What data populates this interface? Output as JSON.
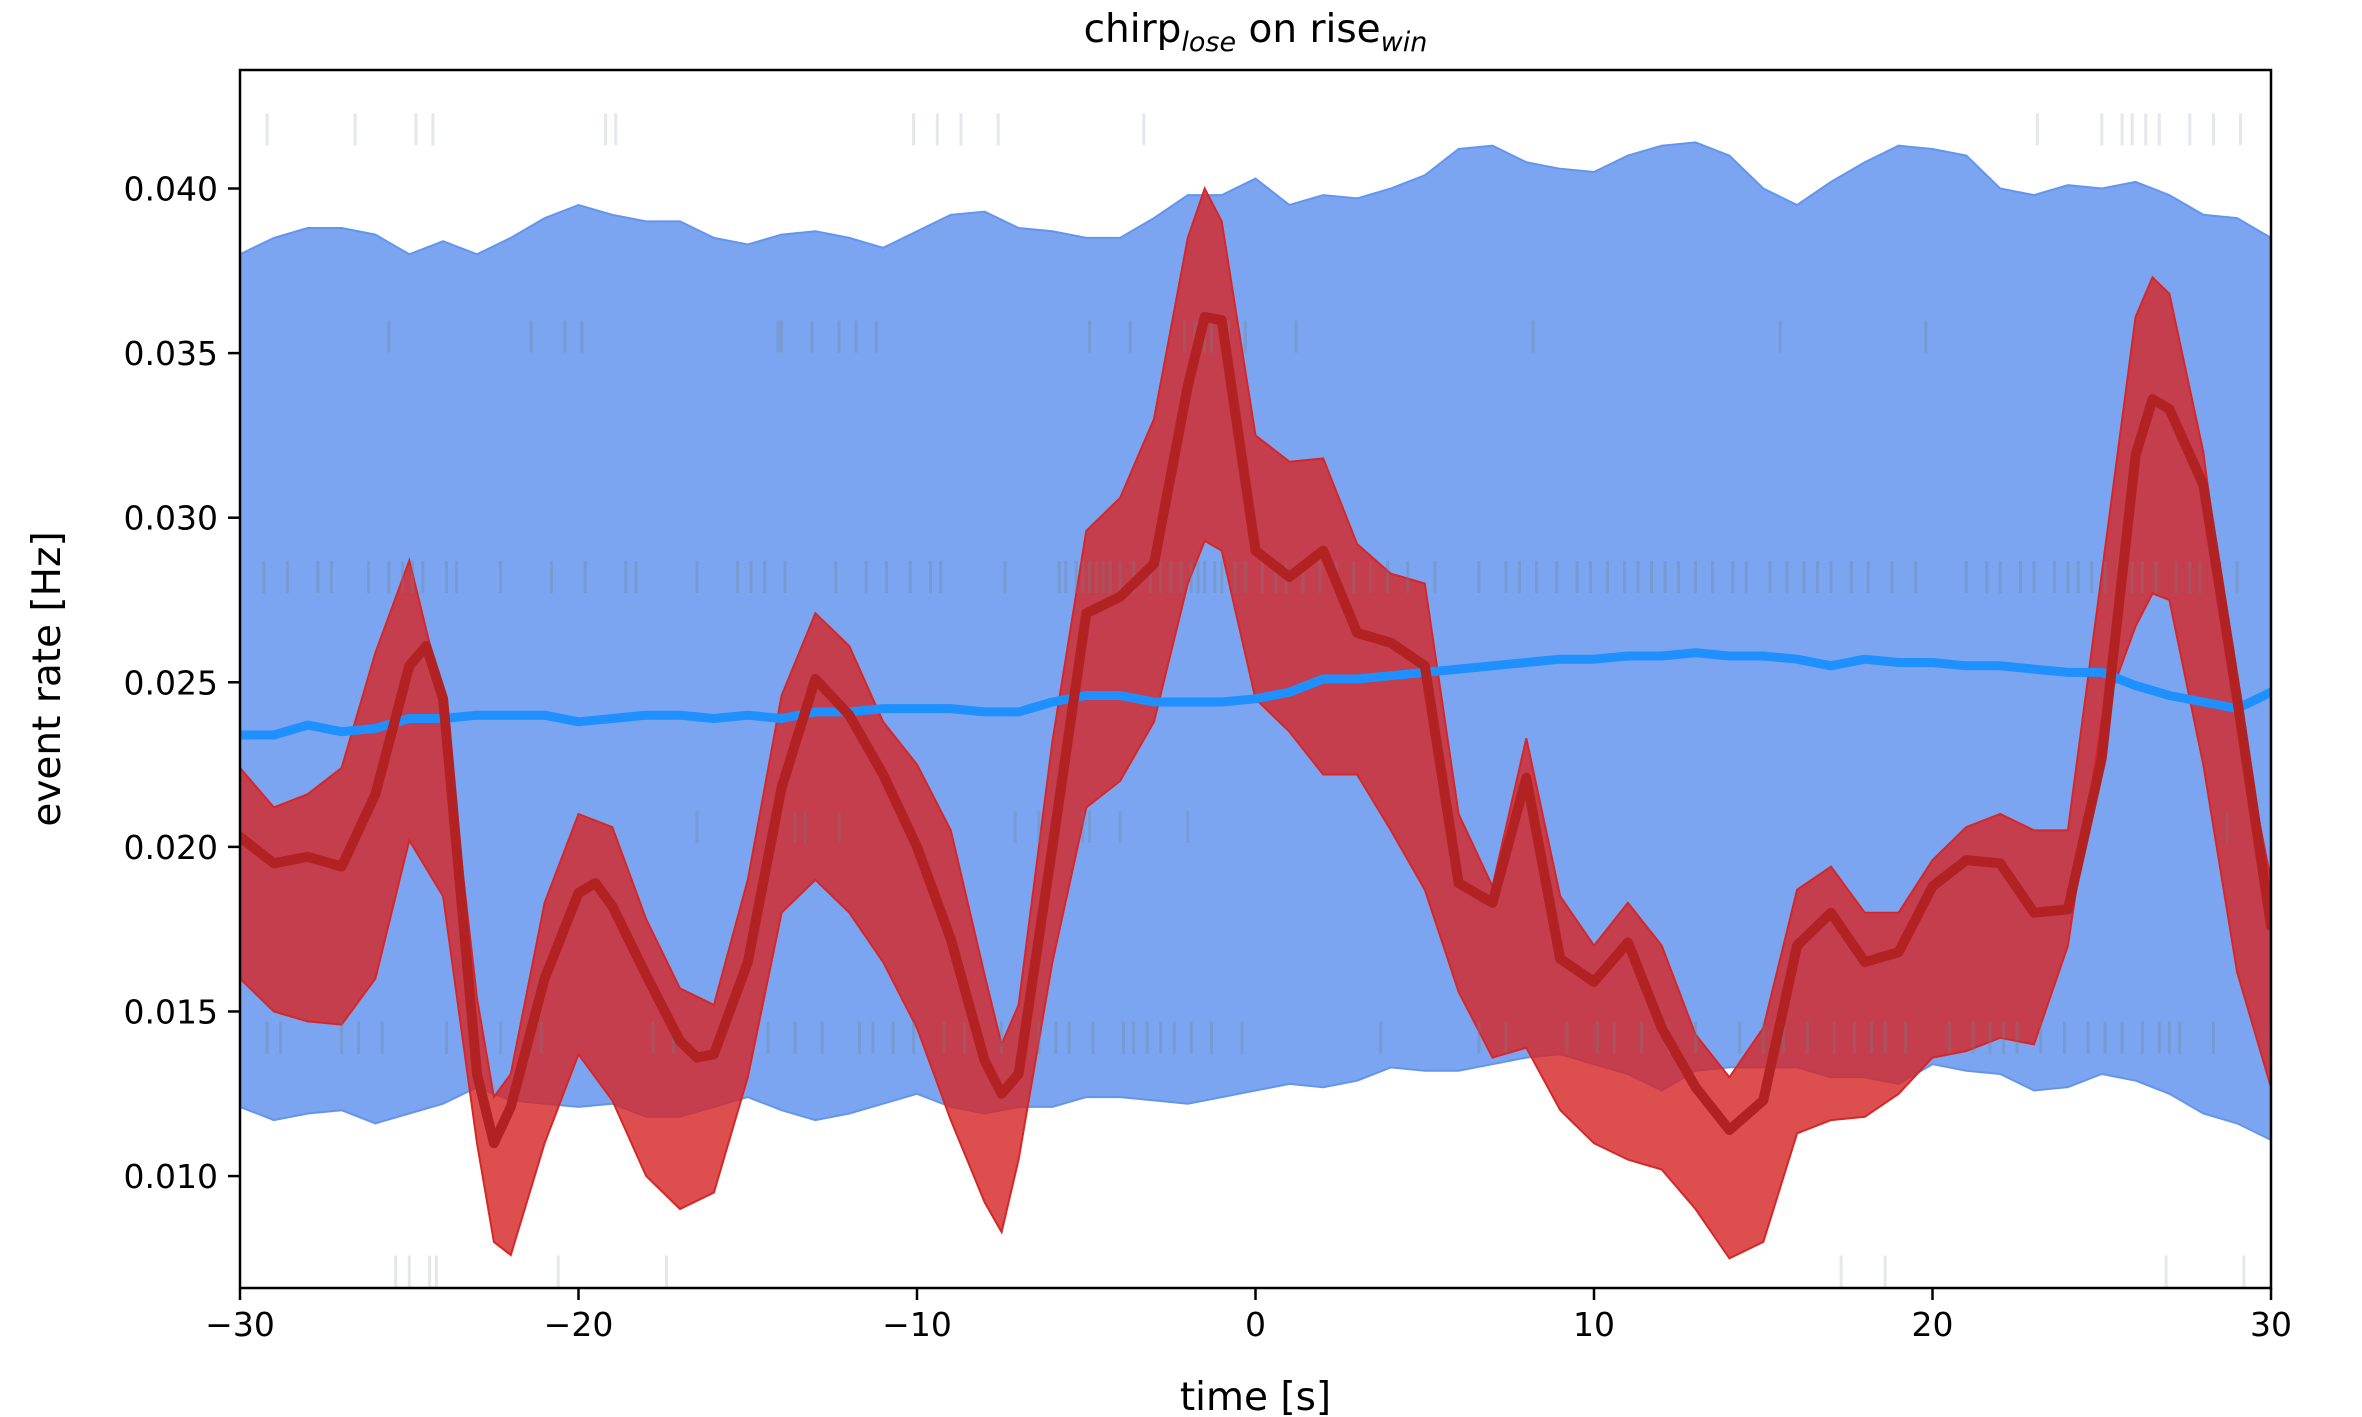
{
  "chart_data": {
    "type": "line",
    "title": "chirp",
    "title_sub1": "lose",
    "title_mid": " on rise",
    "title_sub2": "win",
    "xlabel": "time [s]",
    "ylabel": "event rate [Hz]",
    "xlim": [
      -30,
      30
    ],
    "ylim": [
      0.0066,
      0.0436
    ],
    "xticks": [
      -30,
      -20,
      -10,
      0,
      10,
      20,
      30
    ],
    "xtick_labels": [
      "−30",
      "−20",
      "−10",
      "0",
      "10",
      "20",
      "30"
    ],
    "yticks": [
      0.01,
      0.015,
      0.02,
      0.025,
      0.03,
      0.035,
      0.04
    ],
    "ytick_labels": [
      "0.010",
      "0.015",
      "0.020",
      "0.025",
      "0.030",
      "0.035",
      "0.040"
    ],
    "grid": false,
    "colors": {
      "blue_band": "#6495ed",
      "blue_line": "#1e90ff",
      "red_band": "#d62728",
      "red_line": "#b22222",
      "raster": "#708090"
    },
    "bands": [
      {
        "color": "blue_band",
        "x": [
          -30,
          -29,
          -28,
          -27,
          -26,
          -25,
          -24,
          -23,
          -22,
          -21,
          -20,
          -19,
          -18,
          -17,
          -16,
          -15,
          -14,
          -13,
          -12,
          -11,
          -10,
          -9,
          -8,
          -7,
          -6,
          -5,
          -4,
          -3,
          -2,
          -1,
          0,
          1,
          2,
          3,
          4,
          5,
          6,
          7,
          8,
          9,
          10,
          11,
          12,
          13,
          14,
          15,
          16,
          17,
          18,
          19,
          20,
          21,
          22,
          23,
          24,
          25,
          26,
          27,
          28,
          29,
          30
        ],
        "upper": [
          0.038,
          0.0385,
          0.0388,
          0.0388,
          0.0386,
          0.038,
          0.0384,
          0.038,
          0.0385,
          0.0391,
          0.0395,
          0.0392,
          0.039,
          0.039,
          0.0385,
          0.0383,
          0.0386,
          0.0387,
          0.0385,
          0.0382,
          0.0387,
          0.0392,
          0.0393,
          0.0388,
          0.0387,
          0.0385,
          0.0385,
          0.0391,
          0.0398,
          0.0398,
          0.0403,
          0.0395,
          0.0398,
          0.0397,
          0.04,
          0.0404,
          0.0412,
          0.0413,
          0.0408,
          0.0406,
          0.0405,
          0.041,
          0.0413,
          0.0414,
          0.041,
          0.04,
          0.0395,
          0.0402,
          0.0408,
          0.0413,
          0.0412,
          0.041,
          0.04,
          0.0398,
          0.0401,
          0.04,
          0.0402,
          0.0398,
          0.0392,
          0.0391,
          0.0385
        ],
        "lower": [
          0.0121,
          0.0117,
          0.0119,
          0.012,
          0.0116,
          0.0119,
          0.0122,
          0.0127,
          0.0123,
          0.0122,
          0.0121,
          0.0122,
          0.0118,
          0.0118,
          0.0121,
          0.0124,
          0.012,
          0.0117,
          0.0119,
          0.0122,
          0.0125,
          0.0121,
          0.0119,
          0.0121,
          0.0121,
          0.0124,
          0.0124,
          0.0123,
          0.0122,
          0.0124,
          0.0126,
          0.0128,
          0.0127,
          0.0129,
          0.0133,
          0.0132,
          0.0132,
          0.0134,
          0.0136,
          0.0137,
          0.0134,
          0.0131,
          0.0126,
          0.0132,
          0.0133,
          0.0133,
          0.0133,
          0.013,
          0.013,
          0.0128,
          0.0134,
          0.0132,
          0.0131,
          0.0126,
          0.0127,
          0.0131,
          0.0129,
          0.0125,
          0.0119,
          0.0116,
          0.0111
        ]
      },
      {
        "color": "red_band",
        "x": [
          -30,
          -29,
          -28,
          -27,
          -26,
          -25,
          -24,
          -23,
          -22.5,
          -22,
          -21,
          -20,
          -19,
          -18,
          -17,
          -16,
          -15,
          -14,
          -13,
          -12,
          -11,
          -10,
          -9,
          -8,
          -7.5,
          -7,
          -6,
          -5,
          -4,
          -3,
          -2,
          -1.5,
          -1,
          0,
          1,
          2,
          3,
          4,
          5,
          6,
          7,
          8,
          9,
          10,
          11,
          12,
          13,
          14,
          15,
          16,
          17,
          18,
          19,
          20,
          21,
          22,
          23,
          24,
          25,
          26,
          26.5,
          27,
          28,
          29,
          30
        ],
        "upper": [
          0.0224,
          0.0212,
          0.0216,
          0.0224,
          0.0259,
          0.0287,
          0.0245,
          0.0154,
          0.0124,
          0.0131,
          0.0183,
          0.021,
          0.0206,
          0.0178,
          0.0157,
          0.0152,
          0.019,
          0.0246,
          0.0271,
          0.0261,
          0.0238,
          0.0225,
          0.0205,
          0.0161,
          0.014,
          0.0152,
          0.0232,
          0.0296,
          0.0306,
          0.033,
          0.0385,
          0.04,
          0.039,
          0.0325,
          0.0317,
          0.0318,
          0.0292,
          0.0283,
          0.028,
          0.021,
          0.0188,
          0.0233,
          0.0185,
          0.017,
          0.0183,
          0.017,
          0.0143,
          0.013,
          0.0145,
          0.0187,
          0.0194,
          0.018,
          0.018,
          0.0196,
          0.0206,
          0.021,
          0.0205,
          0.0205,
          0.0283,
          0.0361,
          0.0373,
          0.0368,
          0.032,
          0.0241,
          0.019
        ],
        "lower": [
          0.016,
          0.015,
          0.0147,
          0.0146,
          0.016,
          0.0202,
          0.0185,
          0.011,
          0.008,
          0.0076,
          0.011,
          0.0137,
          0.0123,
          0.01,
          0.009,
          0.0095,
          0.013,
          0.018,
          0.019,
          0.018,
          0.0165,
          0.0145,
          0.0117,
          0.0092,
          0.0083,
          0.0105,
          0.0165,
          0.0212,
          0.022,
          0.0238,
          0.028,
          0.0293,
          0.029,
          0.0245,
          0.0235,
          0.0222,
          0.0222,
          0.0205,
          0.0187,
          0.0156,
          0.0136,
          0.0139,
          0.012,
          0.011,
          0.0105,
          0.0102,
          0.009,
          0.0075,
          0.008,
          0.0113,
          0.0117,
          0.0118,
          0.0125,
          0.0136,
          0.0138,
          0.0142,
          0.014,
          0.017,
          0.0239,
          0.0267,
          0.0277,
          0.0275,
          0.0225,
          0.0162,
          0.0127
        ]
      }
    ],
    "series": [
      {
        "color": "blue_line",
        "x": [
          -30,
          -29,
          -28,
          -27,
          -26,
          -25,
          -24,
          -23,
          -22,
          -21,
          -20,
          -19,
          -18,
          -17,
          -16,
          -15,
          -14,
          -13,
          -12,
          -11,
          -10,
          -9,
          -8,
          -7,
          -6,
          -5,
          -4,
          -3,
          -2,
          -1,
          0,
          1,
          2,
          3,
          4,
          5,
          6,
          7,
          8,
          9,
          10,
          11,
          12,
          13,
          14,
          15,
          16,
          17,
          18,
          19,
          20,
          21,
          22,
          23,
          24,
          25,
          26,
          27,
          28,
          29,
          30
        ],
        "values": [
          0.0234,
          0.0234,
          0.0237,
          0.0235,
          0.0236,
          0.0239,
          0.0239,
          0.024,
          0.024,
          0.024,
          0.0238,
          0.0239,
          0.024,
          0.024,
          0.0239,
          0.024,
          0.0239,
          0.0241,
          0.0241,
          0.0242,
          0.0242,
          0.0242,
          0.0241,
          0.0241,
          0.0244,
          0.0246,
          0.0246,
          0.0244,
          0.0244,
          0.0244,
          0.0245,
          0.0247,
          0.0251,
          0.0251,
          0.0252,
          0.0253,
          0.0254,
          0.0255,
          0.0256,
          0.0257,
          0.0257,
          0.0258,
          0.0258,
          0.0259,
          0.0258,
          0.0258,
          0.0257,
          0.0255,
          0.0257,
          0.0256,
          0.0256,
          0.0255,
          0.0255,
          0.0254,
          0.0253,
          0.0253,
          0.0249,
          0.0246,
          0.0244,
          0.0242,
          0.0247
        ]
      },
      {
        "color": "red_line",
        "x": [
          -30,
          -29,
          -28,
          -27,
          -26,
          -25,
          -24.5,
          -24,
          -23,
          -22.5,
          -22,
          -21,
          -20,
          -19.5,
          -19,
          -18,
          -17,
          -16.5,
          -16,
          -15,
          -14,
          -13,
          -12,
          -11,
          -10,
          -9,
          -8,
          -7.5,
          -7,
          -6,
          -5,
          -4,
          -3,
          -2,
          -1.5,
          -1,
          0,
          1,
          2,
          3,
          4,
          5,
          6,
          7,
          8,
          9,
          10,
          11,
          12,
          13,
          14,
          15,
          16,
          17,
          18,
          19,
          20,
          21,
          22,
          23,
          24,
          25,
          26,
          26.5,
          27,
          28,
          29,
          30
        ],
        "values": [
          0.0203,
          0.0195,
          0.0197,
          0.0194,
          0.0216,
          0.0255,
          0.0261,
          0.0245,
          0.0131,
          0.011,
          0.0121,
          0.016,
          0.0186,
          0.0189,
          0.0182,
          0.0161,
          0.0141,
          0.0136,
          0.0137,
          0.0165,
          0.0218,
          0.0251,
          0.024,
          0.0222,
          0.02,
          0.0172,
          0.0135,
          0.0125,
          0.0131,
          0.02,
          0.0271,
          0.0276,
          0.0286,
          0.034,
          0.0361,
          0.036,
          0.029,
          0.0282,
          0.029,
          0.0265,
          0.0262,
          0.0255,
          0.0189,
          0.0183,
          0.0221,
          0.0166,
          0.0159,
          0.0171,
          0.0145,
          0.0127,
          0.0114,
          0.0123,
          0.017,
          0.018,
          0.0165,
          0.0168,
          0.0188,
          0.0196,
          0.0195,
          0.018,
          0.0181,
          0.0227,
          0.0319,
          0.0336,
          0.0333,
          0.031,
          0.0245,
          0.0176
        ]
      }
    ],
    "rasters": [
      {
        "y": 0.0418,
        "opacity": 0.18,
        "times": [
          -29.2,
          -26.6,
          -24.8,
          -24.3,
          -19.2,
          -18.9,
          -10.1,
          -9.4,
          -8.7,
          -7.6,
          -3.3,
          23.1,
          25.0,
          25.6,
          25.9,
          26.3,
          26.7,
          27.6,
          28.3,
          29.1
        ]
      },
      {
        "y": 0.0355,
        "opacity": 0.3,
        "times": [
          -25.6,
          -21.4,
          -20.4,
          -19.9,
          -14.1,
          -14.0,
          -13.1,
          -12.3,
          -11.8,
          -11.2,
          -4.9,
          -3.7,
          -2.1,
          -1.8,
          -1.7,
          -1.5,
          -1.3,
          -0.8,
          -0.3,
          1.2,
          8.2,
          15.5,
          19.8
        ]
      },
      {
        "y": 0.0282,
        "opacity": 0.3,
        "times": [
          -29.3,
          -28.6,
          -27.7,
          -27.3,
          -26.2,
          -25.6,
          -25.2,
          -24.9,
          -24.6,
          -23.9,
          -23.6,
          -22.3,
          -20.8,
          -19.8,
          -18.6,
          -18.3,
          -16.5,
          -15.3,
          -14.9,
          -14.5,
          -13.9,
          -12.4,
          -11.5,
          -10.9,
          -10.2,
          -9.6,
          -9.3,
          -7.4,
          -5.8,
          -5.6,
          -5.3,
          -5.1,
          -4.9,
          -4.7,
          -4.5,
          -4.3,
          -4.0,
          -3.6,
          -3.1,
          -2.8,
          -2.5,
          -2.2,
          -1.9,
          -1.7,
          -1.5,
          -1.2,
          -1.0,
          -0.6,
          -0.3,
          0.2,
          0.6,
          0.9,
          1.4,
          1.9,
          2.4,
          2.9,
          3.4,
          3.9,
          4.5,
          5.3,
          6.6,
          7.4,
          7.8,
          8.3,
          8.9,
          9.5,
          9.9,
          10.4,
          10.9,
          11.3,
          11.7,
          12.1,
          12.5,
          13.0,
          13.5,
          14.1,
          14.5,
          15.2,
          15.7,
          16.2,
          16.6,
          17.0,
          17.6,
          18.1,
          18.8,
          19.5,
          21.0,
          21.6,
          22.0,
          22.6,
          23.0,
          23.6,
          24.0,
          24.3,
          24.7,
          25.1,
          25.5,
          25.9,
          26.2,
          26.6,
          27.2,
          27.6,
          27.9,
          28.5,
          29.0
        ]
      },
      {
        "y": 0.0206,
        "opacity": 0.25,
        "times": [
          -16.5,
          -13.6,
          -13.3,
          -12.3,
          -7.1,
          -6.4,
          -5.1,
          -4.9,
          -4.0,
          -2.0,
          28.7
        ]
      },
      {
        "y": 0.0142,
        "opacity": 0.3,
        "times": [
          -29.2,
          -28.8,
          -27.0,
          -26.5,
          -25.8,
          -23.9,
          -22.3,
          -21.1,
          -17.8,
          -17.2,
          -14.4,
          -13.6,
          -12.8,
          -11.7,
          -11.3,
          -10.7,
          -10.1,
          -9.2,
          -8.6,
          -7.5,
          -6.4,
          -5.9,
          -5.5,
          -4.8,
          -3.9,
          -3.6,
          -3.2,
          -2.8,
          -2.4,
          -1.9,
          -1.3,
          -0.4,
          3.7,
          6.6,
          7.4,
          9.2,
          10.1,
          10.6,
          11.4,
          12.2,
          13.0,
          14.3,
          15.0,
          15.6,
          16.3,
          17.1,
          17.7,
          18.2,
          18.6,
          19.2,
          20.5,
          21.2,
          21.7,
          22.1,
          22.5,
          23.2,
          23.9,
          24.6,
          25.1,
          25.6,
          26.2,
          26.7,
          27.0,
          27.3,
          28.3
        ]
      },
      {
        "y": 0.0071,
        "opacity": 0.18,
        "times": [
          -25.4,
          -25.0,
          -24.4,
          -24.2,
          -20.6,
          -17.4,
          17.3,
          18.6,
          26.9,
          29.2
        ]
      }
    ]
  }
}
